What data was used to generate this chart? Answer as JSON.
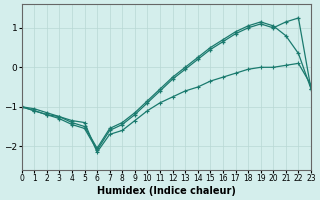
{
  "xlabel": "Humidex (Indice chaleur)",
  "background_color": "#d4eeec",
  "line_color": "#1a7a6e",
  "grid_color": "#b8d8d4",
  "xlim": [
    0,
    23
  ],
  "ylim": [
    -2.6,
    1.6
  ],
  "xticks": [
    0,
    1,
    2,
    3,
    4,
    5,
    6,
    7,
    8,
    9,
    10,
    11,
    12,
    13,
    14,
    15,
    16,
    17,
    18,
    19,
    20,
    21,
    22,
    23
  ],
  "yticks": [
    -2,
    -1,
    0,
    1
  ],
  "line1_x": [
    0,
    1,
    2,
    3,
    4,
    5,
    6,
    7,
    8,
    9,
    10,
    11,
    12,
    13,
    14,
    15,
    16,
    17,
    18,
    19,
    20,
    21,
    22,
    23
  ],
  "line1_y": [
    -1.0,
    -1.1,
    -1.2,
    -1.3,
    -1.45,
    -1.55,
    -2.1,
    -1.6,
    -1.45,
    -1.2,
    -0.9,
    -0.6,
    -0.3,
    -0.05,
    0.2,
    0.45,
    0.65,
    0.85,
    1.0,
    1.1,
    1.0,
    1.15,
    1.25,
    -0.55
  ],
  "line2_x": [
    0,
    1,
    2,
    3,
    4,
    5,
    6,
    7,
    8,
    9,
    10,
    11,
    12,
    13,
    14,
    15,
    16,
    17,
    18,
    19,
    20,
    21,
    22,
    23
  ],
  "line2_y": [
    -1.0,
    -1.05,
    -1.15,
    -1.25,
    -1.4,
    -1.5,
    -2.05,
    -1.55,
    -1.4,
    -1.15,
    -0.85,
    -0.55,
    -0.25,
    0.0,
    0.25,
    0.5,
    0.7,
    0.9,
    1.05,
    1.15,
    1.05,
    0.8,
    0.35,
    -0.55
  ],
  "line3_x": [
    0,
    1,
    2,
    3,
    4,
    5,
    6,
    7,
    8,
    9,
    10,
    11,
    12,
    13,
    14,
    15,
    16,
    17,
    18,
    19,
    20,
    21,
    22,
    23
  ],
  "line3_y": [
    -1.0,
    -1.1,
    -1.2,
    -1.25,
    -1.35,
    -1.4,
    -2.15,
    -1.7,
    -1.6,
    -1.35,
    -1.1,
    -0.9,
    -0.75,
    -0.6,
    -0.5,
    -0.35,
    -0.25,
    -0.15,
    -0.05,
    0.0,
    0.0,
    0.05,
    0.1,
    -0.45
  ]
}
